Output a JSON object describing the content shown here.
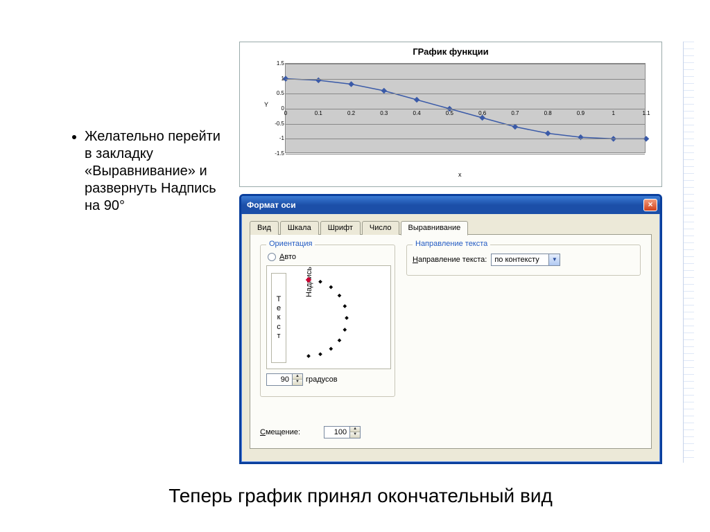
{
  "bullet": {
    "text": "Желательно перейти в закладку «Выравнивание» и развернуть Надпись на 90°"
  },
  "caption": {
    "text": "Теперь график принял окончательный вид"
  },
  "chart": {
    "type": "line",
    "title": "ГРафик функции",
    "title_fontsize": 13,
    "xlabel": "x",
    "ylabel": "Y",
    "label_fontsize": 9,
    "background_color": "#cccccc",
    "grid_color": "#888888",
    "line_color": "#3a5aa8",
    "marker_style": "diamond",
    "marker_color": "#3a5aa8",
    "marker_size": 6,
    "ylim": [
      -1.5,
      1.5
    ],
    "ytick_step": 0.5,
    "yticks": [
      "-1.5",
      "-1",
      "-0.5",
      "0",
      "0.5",
      "1",
      "1.5"
    ],
    "xlim": [
      0,
      1.1
    ],
    "xtick_step": 0.1,
    "xticks": [
      "0",
      "0.1",
      "0.2",
      "0.3",
      "0.4",
      "0.5",
      "0.6",
      "0.7",
      "0.8",
      "0.9",
      "1",
      "1.1"
    ],
    "x": [
      0,
      0.1,
      0.2,
      0.3,
      0.4,
      0.5,
      0.6,
      0.7,
      0.8,
      0.9,
      1.0,
      1.1
    ],
    "y": [
      1.0,
      0.95,
      0.82,
      0.6,
      0.3,
      0.0,
      -0.3,
      -0.6,
      -0.82,
      -0.95,
      -1.0,
      -1.0
    ]
  },
  "dialog": {
    "title": "Формат оси",
    "close_icon": "×",
    "tabs": [
      "Вид",
      "Шкала",
      "Шрифт",
      "Число",
      "Выравнивание"
    ],
    "active_tab": 4,
    "orientation": {
      "group_label": "Ориентация",
      "auto_label": "Авто",
      "auto_underline": "А",
      "vertical_text_chars": [
        "Т",
        "е",
        "к",
        "с",
        "т"
      ],
      "pointer_label": "Надпись",
      "degrees_value": "90",
      "degrees_label": "градусов",
      "dial_marker_color": "#cc0033",
      "dial_dot_color": "#000000",
      "dial_count": 11
    },
    "direction": {
      "group_label": "Направление текста",
      "label": "Направление текста:",
      "label_underline": "Н",
      "value": "по контексту"
    },
    "offset": {
      "label": "Смещение:",
      "label_underline": "С",
      "value": "100"
    }
  }
}
